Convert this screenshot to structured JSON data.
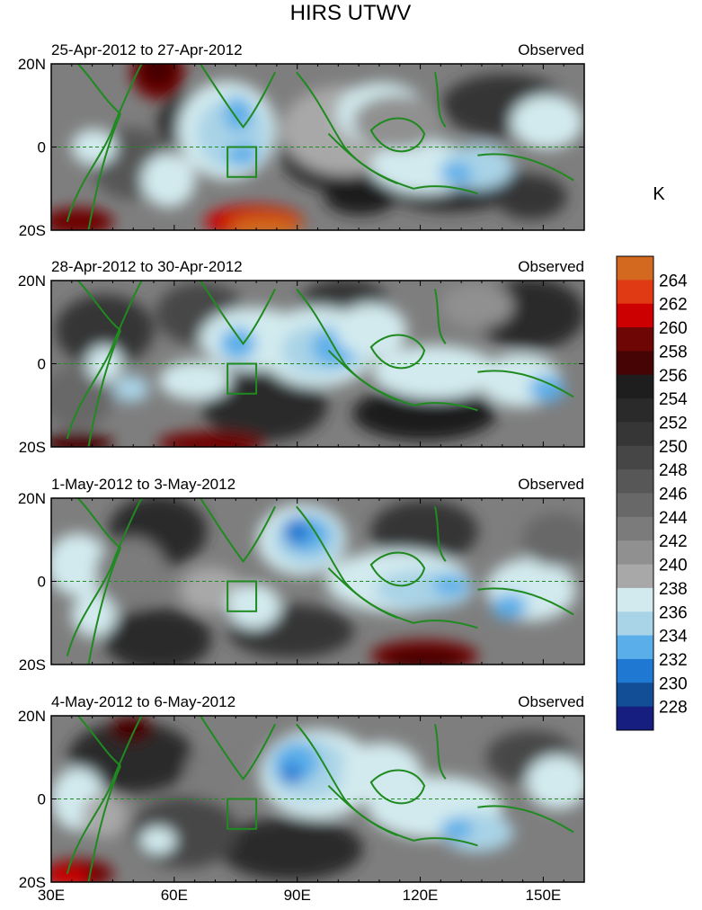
{
  "title": "HIRS UTWV",
  "units_label": "K",
  "lat_labels": [
    "20N",
    "0",
    "20S"
  ],
  "lon_labels": [
    "30E",
    "60E",
    "90E",
    "120E",
    "150E"
  ],
  "colorbar": {
    "levels": [
      "264",
      "262",
      "260",
      "258",
      "256",
      "254",
      "252",
      "250",
      "248",
      "246",
      "244",
      "242",
      "240",
      "238",
      "236",
      "234",
      "232",
      "230",
      "228"
    ],
    "colors": [
      "#d2691e",
      "#e03a14",
      "#cc0000",
      "#6e0606",
      "#470404",
      "#1e1e1e",
      "#2a2a2a",
      "#363636",
      "#464646",
      "#575757",
      "#686868",
      "#7b7b7b",
      "#909090",
      "#a8a8a8",
      "#d2eaee",
      "#a9d3e6",
      "#5aaee9",
      "#1f78d2",
      "#124e95",
      "#161e80"
    ]
  },
  "panels": [
    {
      "period": "25-Apr-2012 to 27-Apr-2012",
      "label": "Observed"
    },
    {
      "period": "28-Apr-2012 to 30-Apr-2012",
      "label": "Observed"
    },
    {
      "period": "1-May-2012 to 3-May-2012",
      "label": "Observed"
    },
    {
      "period": "4-May-2012 to 6-May-2012",
      "label": "Observed"
    }
  ]
}
